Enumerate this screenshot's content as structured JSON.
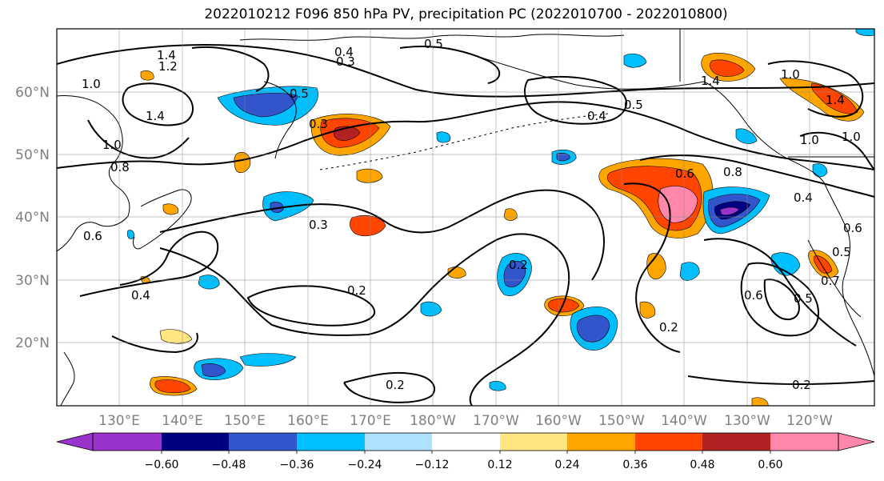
{
  "title": "2022010212 F096 850 hPa PV, precipitation PC (2022010700 - 2022010800)",
  "map": {
    "lat_labels": [
      "60°N",
      "50°N",
      "40°N",
      "30°N",
      "20°N"
    ],
    "lon_labels": [
      "130°E",
      "140°E",
      "150°E",
      "160°E",
      "170°E",
      "180°W",
      "170°W",
      "160°W",
      "150°W",
      "140°W",
      "130°W",
      "120°W"
    ],
    "contour_labels": [
      "1.4",
      "1.2",
      "1.0",
      "1.4",
      "1.0",
      "0.8",
      "0.6",
      "0.4",
      "0.5",
      "0.3",
      "0.4",
      "0.3",
      "0.5",
      "0.4",
      "0.5",
      "0.6",
      "0.8",
      "1.0",
      "1.4",
      "1.0",
      "1.4",
      "1.0",
      "0.4",
      "0.3",
      "0.2",
      "0.2",
      "0.2",
      "0.2",
      "0.2",
      "0.5",
      "0.6",
      "0.7",
      "0.6",
      "0.5"
    ]
  },
  "colorbar": {
    "tick_labels": [
      "−0.60",
      "−0.48",
      "−0.36",
      "−0.24",
      "−0.12",
      "0.12",
      "0.24",
      "0.36",
      "0.48",
      "0.60"
    ],
    "colors": [
      "#9933cc",
      "#000080",
      "#3355cc",
      "#00bfff",
      "#b0e0ff",
      "#ffffff",
      "#ffe680",
      "#ffa500",
      "#ff4500",
      "#b22222",
      "#ff88aa",
      "#ff88aa"
    ]
  }
}
